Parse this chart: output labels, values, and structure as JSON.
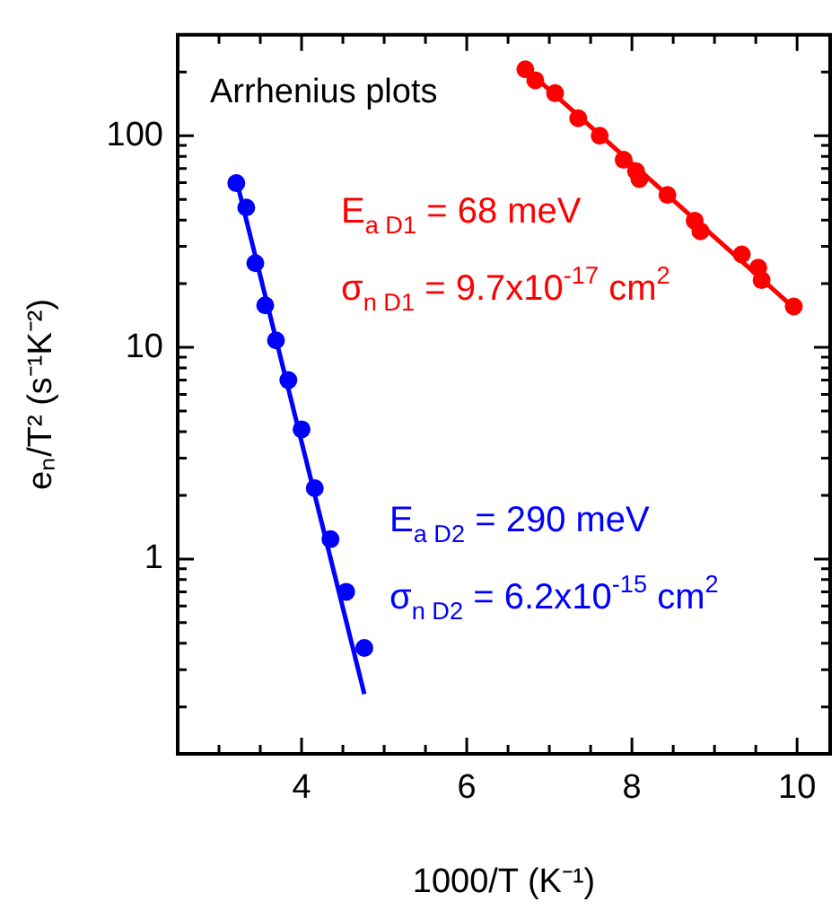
{
  "chart_data": {
    "type": "scatter",
    "xlabel": "1000/T (K⁻¹)",
    "ylabel": "eₙ/T² (s⁻¹K⁻²)",
    "xlim": [
      2.5,
      10.4
    ],
    "xticks": [
      {
        "value": 3,
        "label": null
      },
      {
        "value": 3.5,
        "label": null
      },
      4,
      {
        "value": 4.5,
        "label": null
      },
      {
        "value": 5,
        "label": null
      },
      {
        "value": 5.5,
        "label": null
      },
      6,
      {
        "value": 6.5,
        "label": null
      },
      {
        "value": 7,
        "label": null
      },
      {
        "value": 7.5,
        "label": null
      },
      8,
      {
        "value": 8.5,
        "label": null
      },
      {
        "value": 9,
        "label": null
      },
      {
        "value": 9.5,
        "label": null
      },
      10
    ],
    "ylim": [
      0.12,
      300
    ],
    "log": "y",
    "yticks": [
      {
        "value": 0.2,
        "label": null
      },
      {
        "value": 0.3,
        "label": null
      },
      {
        "value": 0.4,
        "label": null
      },
      {
        "value": 0.5,
        "label": null
      },
      {
        "value": 0.6,
        "label": null
      },
      {
        "value": 0.7,
        "label": null
      },
      {
        "value": 0.8,
        "label": null
      },
      {
        "value": 0.9,
        "label": null
      },
      1,
      {
        "value": 2,
        "label": null
      },
      {
        "value": 3,
        "label": null
      },
      {
        "value": 4,
        "label": null
      },
      {
        "value": 5,
        "label": null
      },
      {
        "value": 6,
        "label": null
      },
      {
        "value": 7,
        "label": null
      },
      {
        "value": 8,
        "label": null
      },
      {
        "value": 9,
        "label": null
      },
      10,
      {
        "value": 20,
        "label": null
      },
      {
        "value": 30,
        "label": null
      },
      {
        "value": 40,
        "label": null
      },
      {
        "value": 50,
        "label": null
      },
      {
        "value": 60,
        "label": null
      },
      {
        "value": 70,
        "label": null
      },
      {
        "value": 80,
        "label": null
      },
      {
        "value": 90,
        "label": null
      },
      100,
      {
        "value": 200,
        "label": null
      }
    ],
    "marker": "circle",
    "grid": false,
    "legend": false,
    "series": [
      {
        "color": "#ff0000",
        "x": [
          6.71,
          6.83,
          7.07,
          7.35,
          7.61,
          7.9,
          8.05,
          8.09,
          8.43,
          8.76,
          8.83,
          9.33,
          9.53,
          9.57,
          9.96
        ],
        "values": [
          206,
          183,
          159,
          121,
          100,
          77,
          68,
          62.5,
          52.5,
          39.7,
          35.4,
          27.5,
          23.8,
          20.8,
          15.6
        ]
      },
      {
        "type": "line",
        "marker": "none",
        "color": "#ff0000",
        "x": [
          6.71,
          9.96
        ],
        "values": [
          208,
          15.4
        ]
      },
      {
        "color": "#0000ff",
        "x": [
          3.21,
          3.33,
          3.44,
          3.56,
          3.69,
          3.84,
          4.0,
          4.16,
          4.35,
          4.54,
          4.76
        ],
        "values": [
          59.7,
          45.8,
          25,
          15.8,
          10.8,
          7.0,
          4.1,
          2.16,
          1.24,
          0.7,
          0.38
        ]
      },
      {
        "type": "line",
        "marker": "none",
        "color": "#0000ff",
        "x": [
          3.21,
          4.76
        ],
        "values": [
          62,
          0.23
        ]
      }
    ],
    "annotations": [
      "Arrhenius plots",
      "E$_{a D1}$ = 68 meV",
      "σ$_{n D1}$ = 9.7x10$^{-17}$ cm$^{2}$",
      "E$_{a D2}$ = 290 meV",
      "σ$_{n D2}$ = 6.2x10$^{-15}$ cm$^{2}$"
    ]
  }
}
